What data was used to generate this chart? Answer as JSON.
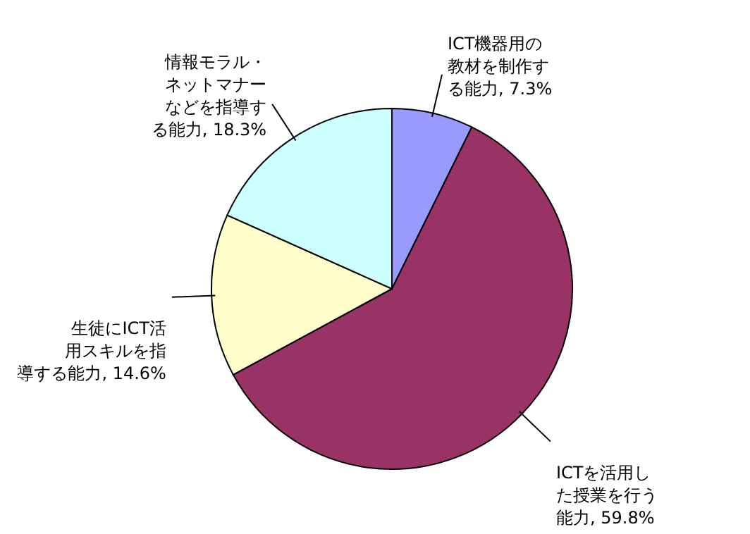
{
  "chart_data": {
    "type": "pie",
    "categories": [
      "ICT機器用の教材を制作する能力",
      "ICTを活用した授業を行う能力",
      "生徒にICT活用スキルを指導する能力",
      "情報モラル・ネットマナーなどを指導する能力"
    ],
    "values": [
      7.3,
      59.8,
      14.6,
      18.3
    ],
    "value_labels": [
      "7.3%",
      "59.8%",
      "14.6%",
      "18.3%"
    ],
    "colors": [
      "#9999ff",
      "#993366",
      "#ffffcc",
      "#ccffff"
    ]
  }
}
